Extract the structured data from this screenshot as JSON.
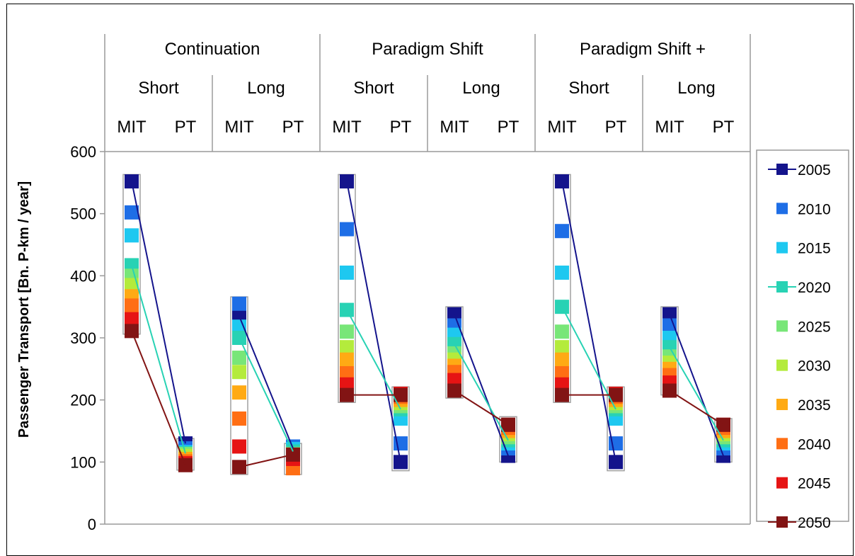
{
  "chart_data": {
    "type": "bar",
    "ylabel": "Passenger Transport [Bn. P-km / year]",
    "ylim": [
      0,
      600
    ],
    "yticks": [
      0,
      100,
      200,
      300,
      400,
      500,
      600
    ],
    "scenarios": [
      "Continuation",
      "Paradigm Shift",
      "Paradigm Shift +"
    ],
    "horizons": [
      "Short",
      "Long"
    ],
    "modes": [
      "MIT",
      "PT"
    ],
    "legend": {
      "position": "right",
      "entries": [
        "2005",
        "2010",
        "2015",
        "2020",
        "2025",
        "2030",
        "2035",
        "2040",
        "2045",
        "2050"
      ],
      "colors": [
        "#14148c",
        "#1e6ee6",
        "#1ec8f0",
        "#28d2b4",
        "#78e678",
        "#b4eb3c",
        "#ffaa14",
        "#ff6e14",
        "#e61414",
        "#821414"
      ]
    },
    "connector_years": [
      "2005",
      "2020",
      "2050"
    ],
    "groups": [
      {
        "scenario": "Continuation",
        "horizon": "Short",
        "MIT": {
          "range": [
            306,
            563
          ],
          "years": [
            552,
            502,
            465,
            417,
            400,
            385,
            367,
            352,
            330,
            311
          ]
        },
        "PT": {
          "range": [
            87,
            138
          ],
          "years": [
            130,
            122,
            116,
            114,
            113,
            110,
            105,
            101,
            98,
            95
          ]
        }
      },
      {
        "scenario": "Continuation",
        "horizon": "Long",
        "MIT": {
          "range": [
            80,
            366
          ],
          "years": [
            335,
            355,
            318,
            300,
            268,
            245,
            212,
            170,
            125,
            92
          ]
        },
        "PT": {
          "range": [
            80,
            130
          ],
          "years": [
            122,
            125,
            121,
            117,
            113,
            108,
            93,
            90,
            105,
            112
          ]
        }
      },
      {
        "scenario": "Paradigm Shift",
        "horizon": "Short",
        "MIT": {
          "range": [
            196,
            563
          ],
          "years": [
            552,
            475,
            405,
            345,
            310,
            285,
            265,
            243,
            225,
            208
          ]
        },
        "PT": {
          "range": [
            86,
            221
          ],
          "years": [
            100,
            130,
            170,
            185,
            190,
            195,
            200,
            205,
            210,
            208
          ]
        }
      },
      {
        "scenario": "Paradigm Shift",
        "horizon": "Long",
        "MIT": {
          "range": [
            203,
            350
          ],
          "years": [
            338,
            320,
            305,
            290,
            275,
            265,
            255,
            245,
            232,
            215
          ]
        },
        "PT": {
          "range": [
            100,
            173
          ],
          "years": [
            110,
            122,
            130,
            135,
            140,
            145,
            150,
            155,
            160,
            160
          ]
        }
      },
      {
        "scenario": "Paradigm Shift +",
        "horizon": "Short",
        "MIT": {
          "range": [
            196,
            563
          ],
          "years": [
            552,
            472,
            405,
            350,
            310,
            285,
            265,
            243,
            225,
            208
          ]
        },
        "PT": {
          "range": [
            86,
            221
          ],
          "years": [
            100,
            130,
            170,
            185,
            190,
            195,
            200,
            205,
            210,
            208
          ]
        }
      },
      {
        "scenario": "Paradigm Shift +",
        "horizon": "Long",
        "MIT": {
          "range": [
            208,
            350
          ],
          "years": [
            338,
            320,
            300,
            285,
            270,
            260,
            250,
            240,
            228,
            215
          ]
        },
        "PT": {
          "range": [
            100,
            170
          ],
          "years": [
            110,
            122,
            130,
            135,
            140,
            145,
            150,
            155,
            160,
            160
          ]
        }
      }
    ]
  }
}
